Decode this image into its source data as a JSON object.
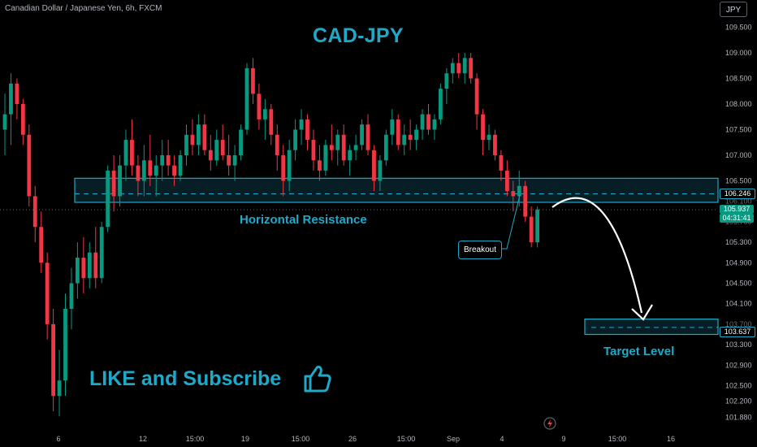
{
  "header": {
    "symbol_title": "Canadian Dollar / Japanese Yen, 6h, FXCM",
    "currency_button": "JPY"
  },
  "annotations": {
    "headline": "CAD-JPY",
    "resistance_label": "Horizontal Resistance",
    "breakout_label": "Breakout",
    "target_label": "Target Level",
    "like_text": "LIKE and Subscribe"
  },
  "price_badges": {
    "resistance_price": "106.246",
    "current_price": "105.937",
    "countdown": "04:31:41",
    "target_price": "103.637"
  },
  "colors": {
    "up": "#089981",
    "down": "#f23645",
    "accent": "#1fa9c8",
    "background": "#000000"
  },
  "icons": {
    "thumbs_up": "thumbs-up-icon",
    "flash": "lightning-icon"
  },
  "chart_data": {
    "type": "candlestick",
    "title": "",
    "ylim": [
      101.75,
      109.75
    ],
    "y_ticks": [
      "109.500",
      "109.000",
      "108.500",
      "108.000",
      "107.500",
      "107.000",
      "106.500",
      "105.300",
      "104.900",
      "104.500",
      "104.100",
      "103.300",
      "102.900",
      "102.500",
      "102.200",
      "101.880"
    ],
    "partially_hidden_ticks": [
      "106.100",
      "105.700",
      "103.700"
    ],
    "x_ticks": [
      "6",
      "12",
      "15:00",
      "19",
      "15:00",
      "26",
      "15:00",
      "Sep",
      "4",
      "9",
      "15:00",
      "16"
    ],
    "resistance_zone": [
      106.08,
      106.55
    ],
    "resistance_line": 106.246,
    "current_price": 105.937,
    "target_zone": [
      103.5,
      103.8
    ],
    "target_line": 103.637,
    "grid": false,
    "candles": [
      [
        107.5,
        108.2,
        107.0,
        107.8
      ],
      [
        107.8,
        108.6,
        107.2,
        108.4
      ],
      [
        108.4,
        108.5,
        107.7,
        108.0
      ],
      [
        108.0,
        108.1,
        107.2,
        107.4
      ],
      [
        107.4,
        107.6,
        106.0,
        106.2
      ],
      [
        106.2,
        106.4,
        105.3,
        105.6
      ],
      [
        105.6,
        105.9,
        104.7,
        104.9
      ],
      [
        104.9,
        105.1,
        103.4,
        103.7
      ],
      [
        103.7,
        104.0,
        102.0,
        102.3
      ],
      [
        102.3,
        103.2,
        101.9,
        102.6
      ],
      [
        102.6,
        104.3,
        102.3,
        104.0
      ],
      [
        104.0,
        104.8,
        103.6,
        104.5
      ],
      [
        104.5,
        105.3,
        104.2,
        105.0
      ],
      [
        105.0,
        105.4,
        104.3,
        104.6
      ],
      [
        104.6,
        105.3,
        104.4,
        105.1
      ],
      [
        105.1,
        105.6,
        104.4,
        104.6
      ],
      [
        104.6,
        105.7,
        104.5,
        105.6
      ],
      [
        105.6,
        106.8,
        105.5,
        106.7
      ],
      [
        106.7,
        107.0,
        105.9,
        106.2
      ],
      [
        106.2,
        107.0,
        106.0,
        106.8
      ],
      [
        106.8,
        107.5,
        106.5,
        107.3
      ],
      [
        107.3,
        107.7,
        106.6,
        106.8
      ],
      [
        106.8,
        107.0,
        106.2,
        106.5
      ],
      [
        106.5,
        107.2,
        106.2,
        106.9
      ],
      [
        106.9,
        107.4,
        106.4,
        106.6
      ],
      [
        106.6,
        107.0,
        106.2,
        106.8
      ],
      [
        106.8,
        107.3,
        106.5,
        107.0
      ],
      [
        107.0,
        107.3,
        106.6,
        106.8
      ],
      [
        106.8,
        107.0,
        106.4,
        106.6
      ],
      [
        106.6,
        107.1,
        106.5,
        107.0
      ],
      [
        107.0,
        107.6,
        106.8,
        107.4
      ],
      [
        107.4,
        107.7,
        107.0,
        107.2
      ],
      [
        107.2,
        107.8,
        107.0,
        107.6
      ],
      [
        107.6,
        107.8,
        107.0,
        107.1
      ],
      [
        107.1,
        107.4,
        106.7,
        106.9
      ],
      [
        106.9,
        107.5,
        106.8,
        107.3
      ],
      [
        107.3,
        107.6,
        106.9,
        107.0
      ],
      [
        107.0,
        107.4,
        106.6,
        106.8
      ],
      [
        106.8,
        107.2,
        106.5,
        107.0
      ],
      [
        107.0,
        107.6,
        106.9,
        107.5
      ],
      [
        107.5,
        108.8,
        107.4,
        108.7
      ],
      [
        108.7,
        108.9,
        108.0,
        108.2
      ],
      [
        108.2,
        108.4,
        107.5,
        107.7
      ],
      [
        107.7,
        108.1,
        107.3,
        107.9
      ],
      [
        107.9,
        108.0,
        107.2,
        107.4
      ],
      [
        107.4,
        107.6,
        106.7,
        107.0
      ],
      [
        107.0,
        107.2,
        106.2,
        106.5
      ],
      [
        106.5,
        107.3,
        106.3,
        107.1
      ],
      [
        107.1,
        107.7,
        106.9,
        107.5
      ],
      [
        107.5,
        107.9,
        107.2,
        107.7
      ],
      [
        107.7,
        107.8,
        107.1,
        107.3
      ],
      [
        107.3,
        107.5,
        106.7,
        106.9
      ],
      [
        106.9,
        107.2,
        106.5,
        106.7
      ],
      [
        106.7,
        107.3,
        106.6,
        107.2
      ],
      [
        107.2,
        107.6,
        106.9,
        107.1
      ],
      [
        107.1,
        107.5,
        106.8,
        107.4
      ],
      [
        107.4,
        107.6,
        106.8,
        106.9
      ],
      [
        106.9,
        107.2,
        106.6,
        107.1
      ],
      [
        107.1,
        107.4,
        106.9,
        107.2
      ],
      [
        107.2,
        107.7,
        107.1,
        107.6
      ],
      [
        107.6,
        107.8,
        107.0,
        107.1
      ],
      [
        107.1,
        107.2,
        106.3,
        106.5
      ],
      [
        106.5,
        107.0,
        106.3,
        106.9
      ],
      [
        106.9,
        107.5,
        106.8,
        107.4
      ],
      [
        107.4,
        107.9,
        107.2,
        107.7
      ],
      [
        107.7,
        107.8,
        107.1,
        107.2
      ],
      [
        107.2,
        107.6,
        107.0,
        107.4
      ],
      [
        107.4,
        107.7,
        107.1,
        107.3
      ],
      [
        107.3,
        107.6,
        107.1,
        107.5
      ],
      [
        107.5,
        107.9,
        107.3,
        107.8
      ],
      [
        107.8,
        108.0,
        107.4,
        107.5
      ],
      [
        107.5,
        107.8,
        107.3,
        107.7
      ],
      [
        107.7,
        108.4,
        107.6,
        108.3
      ],
      [
        108.3,
        108.7,
        108.0,
        108.6
      ],
      [
        108.6,
        108.9,
        108.4,
        108.8
      ],
      [
        108.8,
        109.0,
        108.5,
        108.6
      ],
      [
        108.6,
        109.0,
        108.4,
        108.9
      ],
      [
        108.9,
        109.0,
        108.4,
        108.5
      ],
      [
        108.5,
        108.6,
        107.5,
        107.8
      ],
      [
        107.8,
        107.9,
        107.0,
        107.3
      ],
      [
        107.3,
        107.6,
        107.1,
        107.4
      ],
      [
        107.4,
        107.5,
        106.9,
        107.0
      ],
      [
        107.0,
        107.1,
        106.5,
        106.7
      ],
      [
        106.7,
        106.9,
        106.2,
        106.3
      ],
      [
        106.3,
        106.5,
        105.9,
        106.2
      ],
      [
        106.2,
        106.7,
        106.0,
        106.4
      ],
      [
        106.4,
        106.5,
        105.7,
        105.8
      ],
      [
        105.8,
        106.0,
        105.2,
        105.3
      ],
      [
        105.3,
        106.0,
        105.2,
        105.94
      ]
    ]
  }
}
